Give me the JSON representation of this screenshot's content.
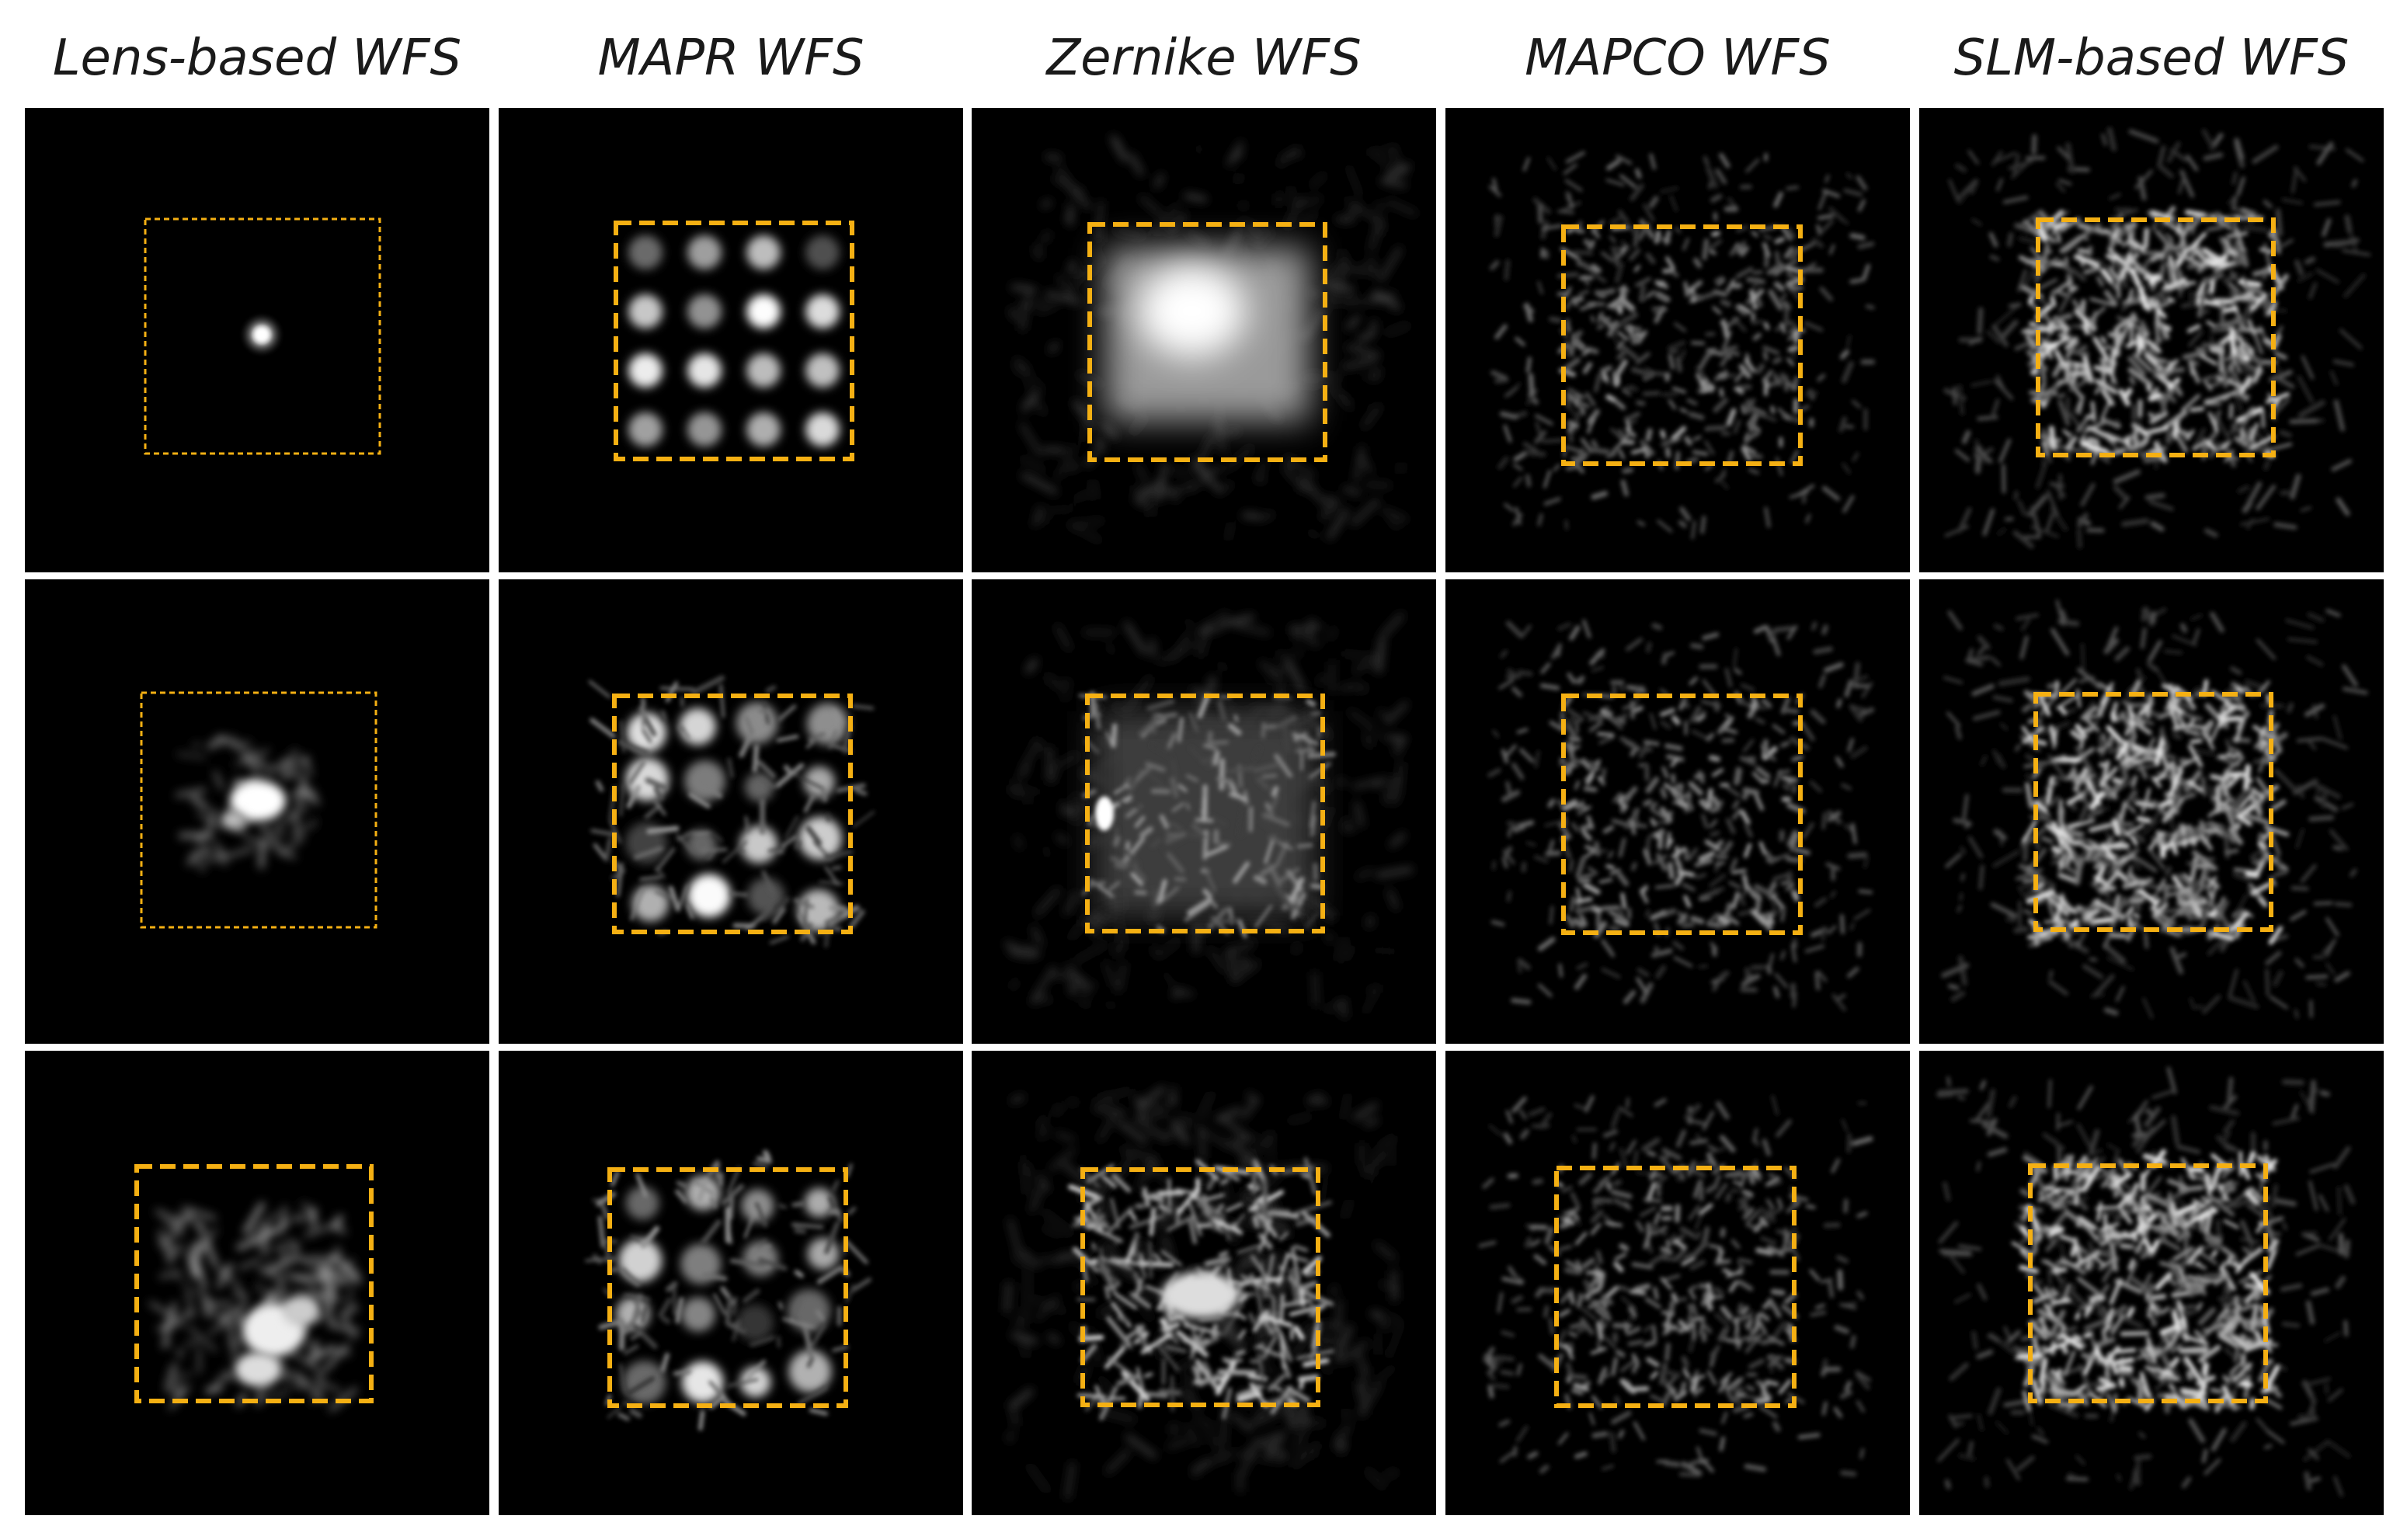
{
  "columns": [
    {
      "title": "Lens-based WFS",
      "pattern": "lens"
    },
    {
      "title": "MAPR WFS",
      "pattern": "mapr"
    },
    {
      "title": "Zernike WFS",
      "pattern": "zernike"
    },
    {
      "title": "MAPCO WFS",
      "pattern": "mapco"
    },
    {
      "title": "SLM-based WFS",
      "pattern": "slm"
    }
  ],
  "rows": 3,
  "colors": {
    "background": "#000000",
    "box_outline": "#f5b013",
    "title_text": "#1a1a1a"
  }
}
